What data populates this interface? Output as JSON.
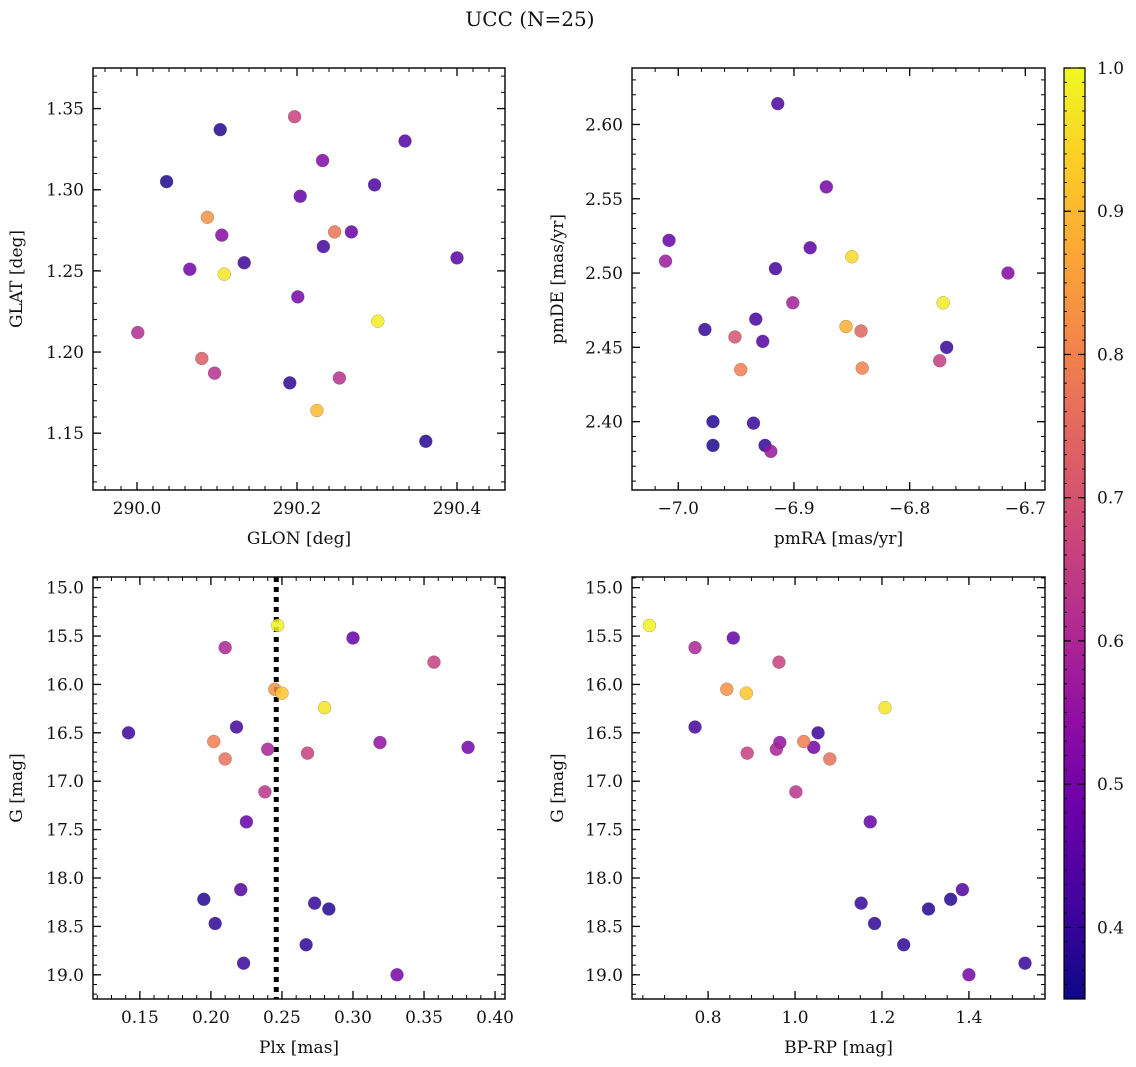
{
  "figure": {
    "title": "UCC (N=25)"
  },
  "colorbar": {
    "colormap": "plasma",
    "range": [
      0.35,
      1.0
    ],
    "ticks": [
      0.4,
      0.5,
      0.6,
      0.7,
      0.8,
      0.9,
      1.0
    ],
    "tick_labels": [
      "0.4",
      "0.5",
      "0.6",
      "0.7",
      "0.8",
      "0.9",
      "1.0"
    ]
  },
  "chart_data": [
    {
      "type": "scatter",
      "xlabel": "GLON [deg]",
      "ylabel": "GLAT [deg]",
      "xlim": [
        289.945,
        290.46
      ],
      "ylim": [
        1.115,
        1.375
      ],
      "xticks": [
        290.0,
        290.2,
        290.4
      ],
      "xtick_labels": [
        "290.0",
        "290.2",
        "290.4"
      ],
      "yticks": [
        1.15,
        1.2,
        1.25,
        1.3,
        1.35
      ],
      "ytick_labels": [
        "1.15",
        "1.20",
        "1.25",
        "1.30",
        "1.35"
      ],
      "x_minor_step": 0.02,
      "y_minor_step": 0.01,
      "points": [
        {
          "x": 290.104,
          "y": 1.337,
          "c": 0.38
        },
        {
          "x": 290.037,
          "y": 1.305,
          "c": 0.37
        },
        {
          "x": 290.197,
          "y": 1.345,
          "c": 0.66
        },
        {
          "x": 290.232,
          "y": 1.318,
          "c": 0.52
        },
        {
          "x": 290.335,
          "y": 1.33,
          "c": 0.44
        },
        {
          "x": 290.204,
          "y": 1.296,
          "c": 0.47
        },
        {
          "x": 290.297,
          "y": 1.303,
          "c": 0.43
        },
        {
          "x": 290.088,
          "y": 1.283,
          "c": 0.83
        },
        {
          "x": 290.106,
          "y": 1.272,
          "c": 0.53
        },
        {
          "x": 290.247,
          "y": 1.274,
          "c": 0.77
        },
        {
          "x": 290.268,
          "y": 1.274,
          "c": 0.48
        },
        {
          "x": 290.233,
          "y": 1.265,
          "c": 0.42
        },
        {
          "x": 290.134,
          "y": 1.255,
          "c": 0.41
        },
        {
          "x": 290.066,
          "y": 1.251,
          "c": 0.49
        },
        {
          "x": 290.109,
          "y": 1.248,
          "c": 0.97
        },
        {
          "x": 290.4,
          "y": 1.258,
          "c": 0.45
        },
        {
          "x": 290.201,
          "y": 1.234,
          "c": 0.5
        },
        {
          "x": 290.001,
          "y": 1.212,
          "c": 0.61
        },
        {
          "x": 290.301,
          "y": 1.219,
          "c": 0.98
        },
        {
          "x": 290.081,
          "y": 1.196,
          "c": 0.72
        },
        {
          "x": 290.097,
          "y": 1.187,
          "c": 0.62
        },
        {
          "x": 290.191,
          "y": 1.181,
          "c": 0.39
        },
        {
          "x": 290.253,
          "y": 1.184,
          "c": 0.62
        },
        {
          "x": 290.225,
          "y": 1.164,
          "c": 0.9
        },
        {
          "x": 290.361,
          "y": 1.145,
          "c": 0.38
        }
      ]
    },
    {
      "type": "scatter",
      "xlabel": "pmRA [mas/yr]",
      "ylabel": "pmDE [mas/yr]",
      "xlim": [
        -7.04,
        -6.683
      ],
      "ylim": [
        2.354,
        2.638
      ],
      "xticks": [
        -7.0,
        -6.9,
        -6.8,
        -6.7
      ],
      "xtick_labels": [
        "−7.0",
        "−6.9",
        "−6.8",
        "−6.7"
      ],
      "yticks": [
        2.4,
        2.45,
        2.5,
        2.55,
        2.6
      ],
      "ytick_labels": [
        "2.40",
        "2.45",
        "2.50",
        "2.55",
        "2.60"
      ],
      "x_minor_step": 0.02,
      "y_minor_step": 0.01,
      "points": [
        {
          "x": -6.914,
          "y": 2.614,
          "c": 0.43
        },
        {
          "x": -6.872,
          "y": 2.558,
          "c": 0.5
        },
        {
          "x": -7.008,
          "y": 2.522,
          "c": 0.47
        },
        {
          "x": -7.011,
          "y": 2.508,
          "c": 0.57
        },
        {
          "x": -6.886,
          "y": 2.517,
          "c": 0.46
        },
        {
          "x": -6.916,
          "y": 2.503,
          "c": 0.42
        },
        {
          "x": -6.85,
          "y": 2.511,
          "c": 0.95
        },
        {
          "x": -6.715,
          "y": 2.5,
          "c": 0.52
        },
        {
          "x": -6.901,
          "y": 2.48,
          "c": 0.58
        },
        {
          "x": -6.771,
          "y": 2.48,
          "c": 0.98
        },
        {
          "x": -6.933,
          "y": 2.469,
          "c": 0.42
        },
        {
          "x": -6.977,
          "y": 2.462,
          "c": 0.4
        },
        {
          "x": -6.855,
          "y": 2.464,
          "c": 0.88
        },
        {
          "x": -6.842,
          "y": 2.461,
          "c": 0.74
        },
        {
          "x": -6.951,
          "y": 2.457,
          "c": 0.7
        },
        {
          "x": -6.927,
          "y": 2.454,
          "c": 0.44
        },
        {
          "x": -6.768,
          "y": 2.45,
          "c": 0.4
        },
        {
          "x": -6.774,
          "y": 2.441,
          "c": 0.65
        },
        {
          "x": -6.946,
          "y": 2.435,
          "c": 0.79
        },
        {
          "x": -6.841,
          "y": 2.436,
          "c": 0.8
        },
        {
          "x": -6.97,
          "y": 2.4,
          "c": 0.38
        },
        {
          "x": -6.935,
          "y": 2.399,
          "c": 0.4
        },
        {
          "x": -6.97,
          "y": 2.384,
          "c": 0.37
        },
        {
          "x": -6.925,
          "y": 2.384,
          "c": 0.39
        },
        {
          "x": -6.92,
          "y": 2.38,
          "c": 0.56
        }
      ]
    },
    {
      "type": "scatter",
      "xlabel": "Plx [mas]",
      "ylabel": "G [mag]",
      "xlim": [
        0.117,
        0.407
      ],
      "ylim": [
        19.25,
        14.89
      ],
      "y_inverted": true,
      "xticks": [
        0.15,
        0.2,
        0.25,
        0.3,
        0.35,
        0.4
      ],
      "xtick_labels": [
        "0.15",
        "0.20",
        "0.25",
        "0.30",
        "0.35",
        "0.40"
      ],
      "yticks": [
        15.0,
        15.5,
        16.0,
        16.5,
        17.0,
        17.5,
        18.0,
        18.5,
        19.0
      ],
      "ytick_labels": [
        "15.0",
        "15.5",
        "16.0",
        "16.5",
        "17.0",
        "17.5",
        "18.0",
        "18.5",
        "19.0"
      ],
      "x_minor_step": 0.01,
      "y_minor_step": 0.1,
      "vline": {
        "x": 0.246,
        "style": "dotted",
        "color": "#000000"
      },
      "points": [
        {
          "x": 0.247,
          "y": 15.39,
          "c": 0.99
        },
        {
          "x": 0.3,
          "y": 15.52,
          "c": 0.47
        },
        {
          "x": 0.21,
          "y": 15.62,
          "c": 0.6
        },
        {
          "x": 0.357,
          "y": 15.77,
          "c": 0.66
        },
        {
          "x": 0.245,
          "y": 16.05,
          "c": 0.83
        },
        {
          "x": 0.25,
          "y": 16.09,
          "c": 0.92
        },
        {
          "x": 0.28,
          "y": 16.24,
          "c": 0.97
        },
        {
          "x": 0.218,
          "y": 16.44,
          "c": 0.42
        },
        {
          "x": 0.142,
          "y": 16.5,
          "c": 0.41
        },
        {
          "x": 0.202,
          "y": 16.59,
          "c": 0.79
        },
        {
          "x": 0.319,
          "y": 16.6,
          "c": 0.55
        },
        {
          "x": 0.381,
          "y": 16.65,
          "c": 0.5
        },
        {
          "x": 0.24,
          "y": 16.67,
          "c": 0.59
        },
        {
          "x": 0.268,
          "y": 16.71,
          "c": 0.66
        },
        {
          "x": 0.21,
          "y": 16.77,
          "c": 0.76
        },
        {
          "x": 0.238,
          "y": 17.11,
          "c": 0.63
        },
        {
          "x": 0.225,
          "y": 17.42,
          "c": 0.47
        },
        {
          "x": 0.221,
          "y": 18.12,
          "c": 0.44
        },
        {
          "x": 0.195,
          "y": 18.22,
          "c": 0.38
        },
        {
          "x": 0.273,
          "y": 18.26,
          "c": 0.4
        },
        {
          "x": 0.283,
          "y": 18.32,
          "c": 0.38
        },
        {
          "x": 0.203,
          "y": 18.47,
          "c": 0.39
        },
        {
          "x": 0.267,
          "y": 18.69,
          "c": 0.39
        },
        {
          "x": 0.223,
          "y": 18.88,
          "c": 0.4
        },
        {
          "x": 0.331,
          "y": 19.0,
          "c": 0.5
        }
      ]
    },
    {
      "type": "scatter",
      "xlabel": "BP-RP [mag]",
      "ylabel": "G [mag]",
      "xlim": [
        0.625,
        1.575
      ],
      "ylim": [
        19.25,
        14.89
      ],
      "y_inverted": true,
      "xticks": [
        0.8,
        1.0,
        1.2,
        1.4
      ],
      "xtick_labels": [
        "0.8",
        "1.0",
        "1.2",
        "1.4"
      ],
      "yticks": [
        15.0,
        15.5,
        16.0,
        16.5,
        17.0,
        17.5,
        18.0,
        18.5,
        19.0
      ],
      "ytick_labels": [
        "15.0",
        "15.5",
        "16.0",
        "16.5",
        "17.0",
        "17.5",
        "18.0",
        "18.5",
        "19.0"
      ],
      "x_minor_step": 0.05,
      "y_minor_step": 0.1,
      "points": [
        {
          "x": 0.665,
          "y": 15.39,
          "c": 0.99
        },
        {
          "x": 0.858,
          "y": 15.52,
          "c": 0.47
        },
        {
          "x": 0.77,
          "y": 15.62,
          "c": 0.6
        },
        {
          "x": 0.963,
          "y": 15.77,
          "c": 0.66
        },
        {
          "x": 0.843,
          "y": 16.05,
          "c": 0.83
        },
        {
          "x": 0.888,
          "y": 16.09,
          "c": 0.92
        },
        {
          "x": 1.207,
          "y": 16.24,
          "c": 0.97
        },
        {
          "x": 0.77,
          "y": 16.44,
          "c": 0.42
        },
        {
          "x": 1.053,
          "y": 16.5,
          "c": 0.41
        },
        {
          "x": 1.02,
          "y": 16.59,
          "c": 0.79
        },
        {
          "x": 0.965,
          "y": 16.6,
          "c": 0.55
        },
        {
          "x": 1.043,
          "y": 16.65,
          "c": 0.5
        },
        {
          "x": 0.957,
          "y": 16.67,
          "c": 0.59
        },
        {
          "x": 0.89,
          "y": 16.71,
          "c": 0.66
        },
        {
          "x": 1.08,
          "y": 16.77,
          "c": 0.76
        },
        {
          "x": 1.002,
          "y": 17.11,
          "c": 0.63
        },
        {
          "x": 1.173,
          "y": 17.42,
          "c": 0.47
        },
        {
          "x": 1.385,
          "y": 18.12,
          "c": 0.44
        },
        {
          "x": 1.358,
          "y": 18.22,
          "c": 0.38
        },
        {
          "x": 1.152,
          "y": 18.26,
          "c": 0.4
        },
        {
          "x": 1.307,
          "y": 18.32,
          "c": 0.38
        },
        {
          "x": 1.183,
          "y": 18.47,
          "c": 0.39
        },
        {
          "x": 1.25,
          "y": 18.69,
          "c": 0.39
        },
        {
          "x": 1.529,
          "y": 18.88,
          "c": 0.4
        },
        {
          "x": 1.4,
          "y": 19.0,
          "c": 0.5
        }
      ]
    }
  ]
}
